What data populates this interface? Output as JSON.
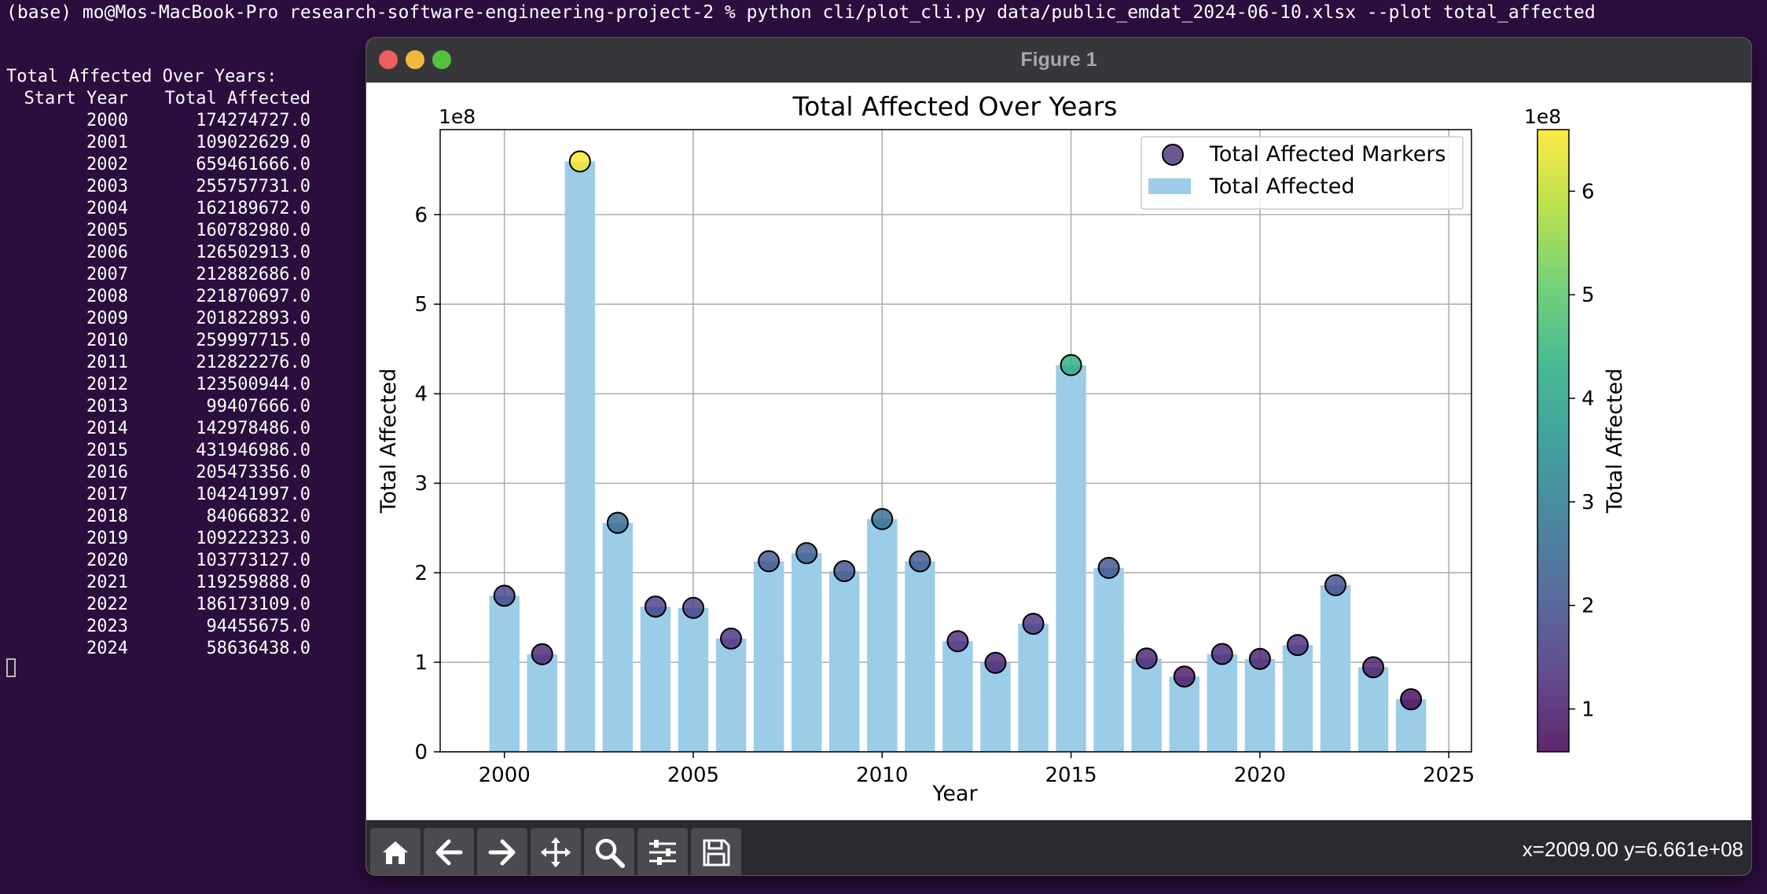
{
  "terminal": {
    "command_line": "(base) mo@Mos-MacBook-Pro research-software-engineering-project-2 % python cli/plot_cli.py data/public_emdat_2024-06-10.xlsx --plot total_affected",
    "output_title": "Total Affected Over Years:",
    "table_header": {
      "year": "Start Year",
      "value": "Total Affected"
    },
    "rows": [
      {
        "year": "2000",
        "value": "174274727.0"
      },
      {
        "year": "2001",
        "value": "109022629.0"
      },
      {
        "year": "2002",
        "value": "659461666.0"
      },
      {
        "year": "2003",
        "value": "255757731.0"
      },
      {
        "year": "2004",
        "value": "162189672.0"
      },
      {
        "year": "2005",
        "value": "160782980.0"
      },
      {
        "year": "2006",
        "value": "126502913.0"
      },
      {
        "year": "2007",
        "value": "212882686.0"
      },
      {
        "year": "2008",
        "value": "221870697.0"
      },
      {
        "year": "2009",
        "value": "201822893.0"
      },
      {
        "year": "2010",
        "value": "259997715.0"
      },
      {
        "year": "2011",
        "value": "212822276.0"
      },
      {
        "year": "2012",
        "value": "123500944.0"
      },
      {
        "year": "2013",
        "value": "99407666.0"
      },
      {
        "year": "2014",
        "value": "142978486.0"
      },
      {
        "year": "2015",
        "value": "431946986.0"
      },
      {
        "year": "2016",
        "value": "205473356.0"
      },
      {
        "year": "2017",
        "value": "104241997.0"
      },
      {
        "year": "2018",
        "value": "84066832.0"
      },
      {
        "year": "2019",
        "value": "109222323.0"
      },
      {
        "year": "2020",
        "value": "103773127.0"
      },
      {
        "year": "2021",
        "value": "119259888.0"
      },
      {
        "year": "2022",
        "value": "186173109.0"
      },
      {
        "year": "2023",
        "value": "94455675.0"
      },
      {
        "year": "2024",
        "value": "58636438.0"
      }
    ]
  },
  "window": {
    "title": "Figure 1",
    "coords_readout": "x=2009.00 y=6.661e+08",
    "toolbar_icons": [
      "home-icon",
      "back-arrow-icon",
      "forward-arrow-icon",
      "pan-icon",
      "zoom-icon",
      "configure-icon",
      "save-icon"
    ]
  },
  "colors": {
    "terminal_bg": "#2a0e3e",
    "bar": "#9ccde8",
    "window_titlebar": "#37373b",
    "toolbar": "#2b2b2f"
  },
  "chart_data": {
    "type": "bar",
    "title": "Total Affected Over Years",
    "xlabel": "Year",
    "ylabel": "Total Affected",
    "y_offset_label": "1e8",
    "xlim": [
      1998.3,
      2025.6
    ],
    "ylim": [
      0,
      6.95
    ],
    "x_ticks": [
      2000,
      2005,
      2010,
      2015,
      2020,
      2025
    ],
    "y_ticks": [
      0,
      1,
      2,
      3,
      4,
      5,
      6
    ],
    "grid": true,
    "legend": {
      "placement": "top-right",
      "entries": [
        "Total Affected Markers",
        "Total Affected"
      ]
    },
    "x": [
      2000,
      2001,
      2002,
      2003,
      2004,
      2005,
      2006,
      2007,
      2008,
      2009,
      2010,
      2011,
      2012,
      2013,
      2014,
      2015,
      2016,
      2017,
      2018,
      2019,
      2020,
      2021,
      2022,
      2023,
      2024
    ],
    "series": [
      {
        "name": "Total Affected",
        "type": "bar",
        "values": [
          1.74274727,
          1.09022629,
          6.59461666,
          2.55757731,
          1.62189672,
          1.6078298,
          1.26502913,
          2.12882686,
          2.21870697,
          2.01822893,
          2.59997715,
          2.12822276,
          1.23500944,
          0.99407666,
          1.42978486,
          4.31946986,
          2.05473356,
          1.04241997,
          0.84066832,
          1.09222323,
          1.03773127,
          1.19259888,
          1.86173109,
          0.94455675,
          0.58636438
        ]
      },
      {
        "name": "Total Affected Markers",
        "type": "scatter",
        "values": [
          1.74274727,
          1.09022629,
          6.59461666,
          2.55757731,
          1.62189672,
          1.6078298,
          1.26502913,
          2.12882686,
          2.21870697,
          2.01822893,
          2.59997715,
          2.12822276,
          1.23500944,
          0.99407666,
          1.42978486,
          4.31946986,
          2.05473356,
          1.04241997,
          0.84066832,
          1.09222323,
          1.03773127,
          1.19259888,
          1.86173109,
          0.94455675,
          0.58636438
        ]
      }
    ],
    "colorbar": {
      "label": "Total Affected",
      "offset_label": "1e8",
      "range": [
        0.58636438,
        6.59461666
      ],
      "ticks": [
        1,
        2,
        3,
        4,
        5,
        6
      ],
      "colormap": "viridis"
    }
  }
}
